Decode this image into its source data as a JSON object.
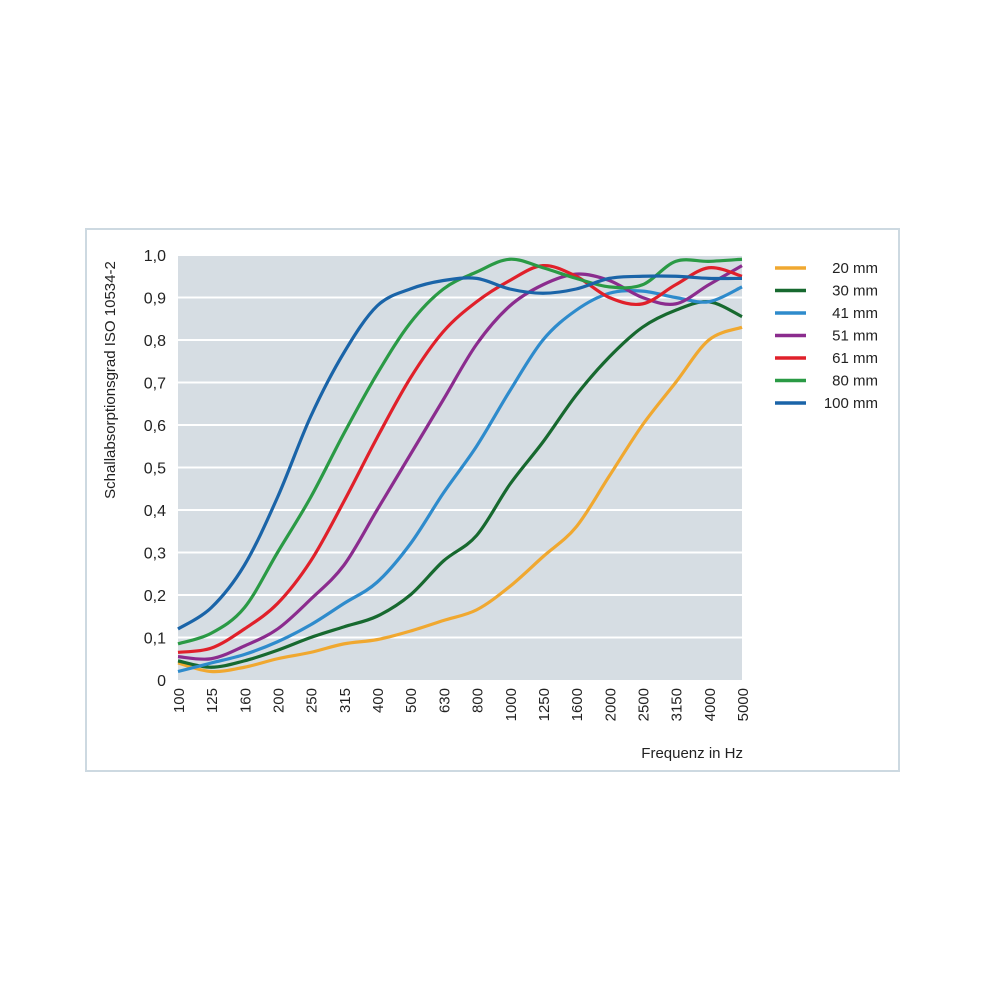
{
  "chart_data": {
    "type": "line",
    "title": "",
    "xlabel": "Frequenz in Hz",
    "ylabel": "Schallabsorptionsgrad ISO 10534-2",
    "ylim": [
      0,
      1.0
    ],
    "yticks": [
      "0",
      "0,1",
      "0,2",
      "0,3",
      "0,4",
      "0,5",
      "0,6",
      "0,7",
      "0,8",
      "0,9",
      "1,0"
    ],
    "grid": true,
    "legend_position": "right",
    "categories": [
      "100",
      "125",
      "160",
      "200",
      "250",
      "315",
      "400",
      "500",
      "630",
      "800",
      "1000",
      "1250",
      "1600",
      "2000",
      "2500",
      "3150",
      "4000",
      "5000"
    ],
    "series": [
      {
        "name": "20 mm",
        "color": "#f0a830",
        "values": [
          0.04,
          0.02,
          0.03,
          0.05,
          0.065,
          0.085,
          0.095,
          0.115,
          0.14,
          0.165,
          0.22,
          0.29,
          0.36,
          0.48,
          0.6,
          0.7,
          0.8,
          0.83
        ]
      },
      {
        "name": "30 mm",
        "color": "#17692f",
        "values": [
          0.045,
          0.03,
          0.045,
          0.07,
          0.1,
          0.125,
          0.15,
          0.2,
          0.28,
          0.34,
          0.46,
          0.56,
          0.67,
          0.76,
          0.83,
          0.87,
          0.89,
          0.855
        ]
      },
      {
        "name": "41 mm",
        "color": "#2e8bcc",
        "values": [
          0.02,
          0.04,
          0.06,
          0.09,
          0.13,
          0.18,
          0.23,
          0.32,
          0.44,
          0.55,
          0.68,
          0.8,
          0.87,
          0.91,
          0.915,
          0.9,
          0.89,
          0.925
        ]
      },
      {
        "name": "51 mm",
        "color": "#8b2c8e",
        "values": [
          0.055,
          0.05,
          0.08,
          0.12,
          0.19,
          0.27,
          0.4,
          0.53,
          0.66,
          0.79,
          0.88,
          0.93,
          0.955,
          0.94,
          0.9,
          0.885,
          0.93,
          0.975
        ]
      },
      {
        "name": "61 mm",
        "color": "#e0202a",
        "values": [
          0.065,
          0.075,
          0.12,
          0.18,
          0.28,
          0.42,
          0.57,
          0.71,
          0.82,
          0.89,
          0.94,
          0.975,
          0.95,
          0.9,
          0.885,
          0.93,
          0.97,
          0.95
        ]
      },
      {
        "name": "80 mm",
        "color": "#2a9a45",
        "values": [
          0.085,
          0.11,
          0.17,
          0.3,
          0.43,
          0.58,
          0.72,
          0.84,
          0.92,
          0.96,
          0.99,
          0.97,
          0.945,
          0.925,
          0.93,
          0.985,
          0.985,
          0.99
        ]
      },
      {
        "name": "100 mm",
        "color": "#1a64a8",
        "values": [
          0.12,
          0.17,
          0.27,
          0.43,
          0.62,
          0.77,
          0.88,
          0.92,
          0.94,
          0.945,
          0.92,
          0.91,
          0.92,
          0.945,
          0.95,
          0.95,
          0.945,
          0.945
        ]
      }
    ]
  }
}
